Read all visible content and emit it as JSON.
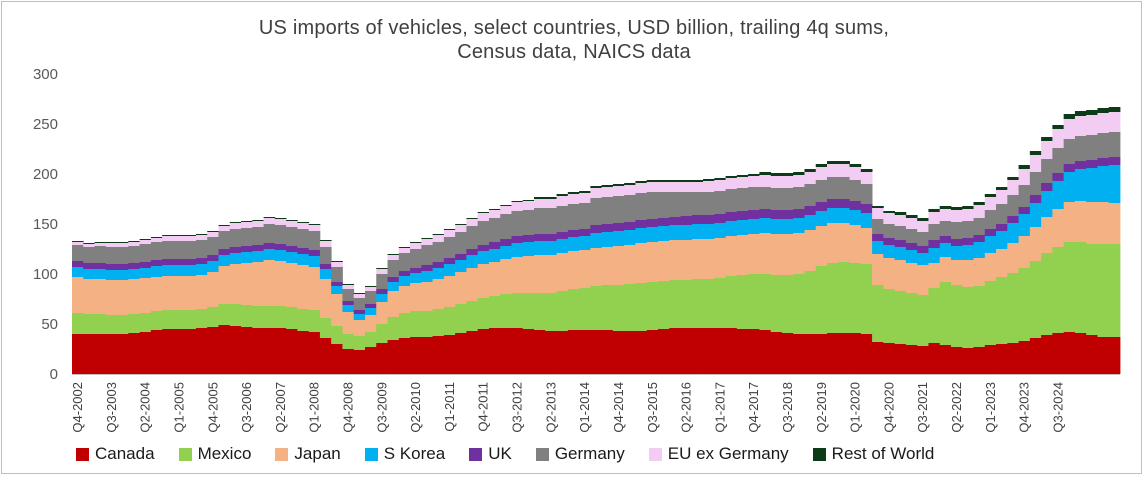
{
  "chart_data": {
    "type": "area",
    "title": "US imports of vehicles, select countries, USD billion, trailing 4q sums,",
    "subtitle": "Census data, NAICS data",
    "ylim": [
      0,
      300
    ],
    "yticks": [
      "0",
      "50",
      "100",
      "150",
      "200",
      "250",
      "300"
    ],
    "xtick_labels": [
      "Q4-2002",
      "Q3-2003",
      "Q2-2004",
      "Q1-2005",
      "Q4-2005",
      "Q3-2006",
      "Q2-2007",
      "Q1-2008",
      "Q4-2008",
      "Q3-2009",
      "Q2-2010",
      "Q1-2011",
      "Q4-2011",
      "Q3-2012",
      "Q2-2013",
      "Q1-2014",
      "Q4-2014",
      "Q3-2015",
      "Q2-2016",
      "Q1-2017",
      "Q4-2017",
      "Q3-2018",
      "Q2-2019",
      "Q1-2020",
      "Q4-2020",
      "Q3-2021",
      "Q2-2022",
      "Q1-2023",
      "Q4-2023",
      "Q3-2024"
    ],
    "legend_position": "bottom",
    "grid": false,
    "series": [
      {
        "name": "Canada",
        "color": "#c00000",
        "values": [
          40,
          40,
          40,
          40,
          40,
          41,
          42,
          44,
          45,
          45,
          45,
          46,
          47,
          49,
          48,
          47,
          46,
          46,
          46,
          45,
          43,
          42,
          36,
          30,
          25,
          24,
          27,
          31,
          34,
          36,
          37,
          37,
          38,
          39,
          41,
          43,
          45,
          46,
          46,
          46,
          45,
          44,
          43,
          43,
          44,
          44,
          44,
          44,
          43,
          43,
          43,
          44,
          45,
          46,
          46,
          46,
          46,
          46,
          46,
          45,
          45,
          44,
          42,
          41,
          40,
          40,
          40,
          41,
          41,
          41,
          40,
          32,
          31,
          30,
          29,
          28,
          31,
          29,
          27,
          26,
          27,
          29,
          30,
          31,
          33,
          36,
          39,
          41,
          42,
          41,
          39,
          37,
          37
        ]
      },
      {
        "name": "Mexico",
        "color": "#92d050",
        "values": [
          21,
          20,
          20,
          19,
          19,
          19,
          19,
          19,
          19,
          19,
          19,
          19,
          20,
          21,
          22,
          22,
          22,
          22,
          22,
          22,
          22,
          22,
          20,
          18,
          15,
          14,
          15,
          19,
          23,
          25,
          26,
          26,
          27,
          28,
          29,
          30,
          31,
          32,
          34,
          35,
          36,
          37,
          38,
          40,
          41,
          42,
          44,
          45,
          46,
          47,
          48,
          48,
          48,
          48,
          48,
          49,
          49,
          50,
          52,
          54,
          55,
          56,
          57,
          58,
          60,
          63,
          68,
          70,
          71,
          70,
          70,
          57,
          54,
          53,
          52,
          51,
          55,
          63,
          62,
          61,
          61,
          64,
          67,
          70,
          73,
          77,
          82,
          86,
          90,
          91,
          91,
          93,
          93
        ]
      },
      {
        "name": "Japan",
        "color": "#f4b183",
        "values": [
          36,
          35,
          35,
          35,
          35,
          35,
          35,
          34,
          34,
          34,
          34,
          34,
          35,
          38,
          40,
          42,
          44,
          46,
          45,
          44,
          44,
          43,
          39,
          32,
          22,
          16,
          17,
          22,
          26,
          27,
          28,
          29,
          30,
          31,
          32,
          33,
          34,
          34,
          35,
          36,
          37,
          38,
          38,
          38,
          38,
          38,
          38,
          38,
          39,
          39,
          40,
          40,
          40,
          40,
          40,
          40,
          40,
          40,
          40,
          40,
          40,
          41,
          41,
          41,
          41,
          41,
          40,
          40,
          39,
          38,
          36,
          31,
          31,
          31,
          30,
          30,
          25,
          25,
          25,
          27,
          28,
          28,
          28,
          30,
          32,
          34,
          36,
          38,
          40,
          41,
          42,
          42,
          41
        ]
      },
      {
        "name": "S Korea",
        "color": "#00b0f0",
        "values": [
          10,
          10,
          10,
          10,
          10,
          10,
          10,
          11,
          11,
          11,
          11,
          11,
          11,
          11,
          11,
          11,
          11,
          11,
          11,
          11,
          11,
          11,
          10,
          8,
          7,
          6,
          7,
          8,
          9,
          10,
          10,
          11,
          11,
          12,
          12,
          13,
          13,
          13,
          13,
          14,
          14,
          14,
          14,
          14,
          14,
          14,
          15,
          15,
          15,
          15,
          15,
          15,
          15,
          15,
          15,
          15,
          15,
          15,
          15,
          15,
          15,
          15,
          15,
          15,
          15,
          15,
          15,
          15,
          15,
          15,
          15,
          13,
          13,
          13,
          13,
          12,
          15,
          14,
          14,
          15,
          16,
          17,
          18,
          20,
          22,
          24,
          26,
          28,
          30,
          32,
          34,
          36,
          38
        ]
      },
      {
        "name": "UK",
        "color": "#7030a0",
        "values": [
          6,
          6,
          6,
          6,
          6,
          6,
          6,
          6,
          6,
          6,
          6,
          6,
          6,
          6,
          6,
          6,
          6,
          6,
          6,
          6,
          6,
          6,
          5,
          4,
          4,
          4,
          4,
          5,
          5,
          5,
          5,
          6,
          6,
          6,
          6,
          6,
          6,
          7,
          7,
          7,
          7,
          7,
          7,
          7,
          7,
          7,
          8,
          8,
          8,
          8,
          8,
          8,
          8,
          8,
          9,
          9,
          9,
          9,
          9,
          9,
          9,
          9,
          9,
          9,
          9,
          9,
          9,
          9,
          9,
          9,
          9,
          7,
          7,
          7,
          7,
          7,
          8,
          7,
          7,
          7,
          7,
          7,
          7,
          7,
          7,
          8,
          8,
          8,
          8,
          8,
          8,
          8,
          8
        ]
      },
      {
        "name": "Germany",
        "color": "#808080",
        "values": [
          16,
          16,
          17,
          17,
          17,
          17,
          18,
          18,
          18,
          18,
          18,
          18,
          18,
          18,
          18,
          18,
          18,
          19,
          19,
          19,
          19,
          19,
          17,
          15,
          12,
          12,
          13,
          15,
          17,
          18,
          19,
          20,
          20,
          21,
          22,
          23,
          24,
          24,
          25,
          25,
          25,
          26,
          26,
          26,
          26,
          26,
          27,
          27,
          27,
          27,
          27,
          27,
          26,
          25,
          24,
          23,
          23,
          23,
          23,
          23,
          23,
          22,
          22,
          22,
          22,
          22,
          22,
          22,
          22,
          21,
          20,
          15,
          14,
          14,
          14,
          14,
          16,
          15,
          17,
          17,
          17,
          19,
          20,
          21,
          22,
          23,
          24,
          25,
          25,
          25,
          25,
          25,
          25
        ]
      },
      {
        "name": "EU ex Germany",
        "color": "#f2ccf2",
        "values": [
          3,
          3,
          3,
          4,
          4,
          4,
          4,
          4,
          5,
          5,
          5,
          5,
          5,
          5,
          6,
          6,
          6,
          6,
          6,
          6,
          6,
          6,
          6,
          5,
          4,
          4,
          4,
          5,
          5,
          5,
          6,
          6,
          7,
          7,
          7,
          7,
          8,
          8,
          8,
          9,
          9,
          9,
          9,
          10,
          10,
          10,
          10,
          10,
          10,
          10,
          10,
          10,
          10,
          10,
          10,
          10,
          11,
          11,
          11,
          11,
          11,
          12,
          12,
          12,
          12,
          12,
          13,
          13,
          13,
          13,
          12,
          11,
          11,
          11,
          11,
          11,
          12,
          12,
          12,
          12,
          13,
          13,
          14,
          15,
          16,
          17,
          18,
          19,
          20,
          20,
          20,
          20,
          20
        ]
      },
      {
        "name": "Rest of World",
        "color": "#0d3b17",
        "values": [
          1,
          1,
          1,
          1,
          1,
          1,
          1,
          1,
          1,
          1,
          1,
          1,
          1,
          1,
          1,
          1,
          1,
          1,
          1,
          1,
          1,
          1,
          1,
          1,
          1,
          1,
          1,
          1,
          1,
          1,
          1,
          1,
          1,
          1,
          1,
          1,
          1,
          1,
          1,
          1,
          1,
          2,
          2,
          2,
          2,
          2,
          2,
          2,
          2,
          2,
          2,
          2,
          2,
          2,
          2,
          2,
          2,
          2,
          2,
          2,
          2,
          3,
          3,
          3,
          3,
          3,
          3,
          3,
          3,
          3,
          3,
          2,
          2,
          3,
          3,
          3,
          3,
          3,
          3,
          3,
          3,
          3,
          3,
          3,
          4,
          4,
          4,
          4,
          5,
          5,
          5,
          5,
          5
        ]
      }
    ]
  }
}
